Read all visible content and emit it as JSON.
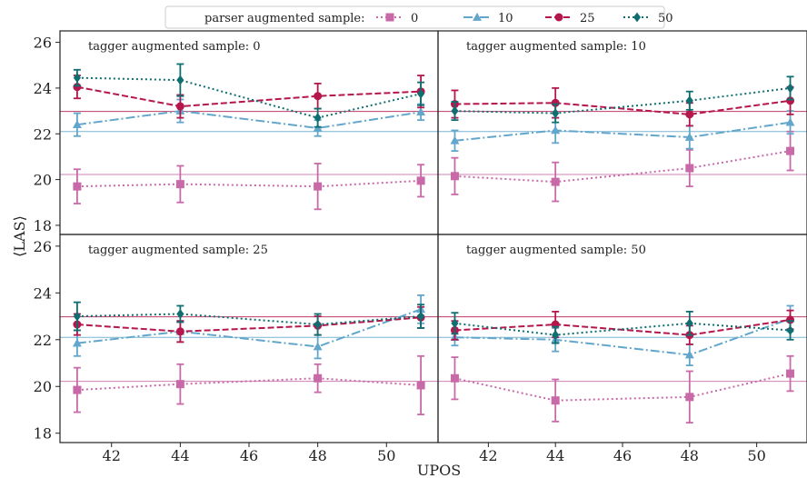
{
  "chart_data": {
    "type": "line",
    "xlabel": "UPOS",
    "ylabel": "⟨LAS⟩",
    "xlim": [
      40.5,
      51.5
    ],
    "ylim": [
      17.6,
      26.5
    ],
    "x_ticks": [
      42,
      44,
      46,
      48,
      50
    ],
    "y_ticks": [
      18,
      20,
      22,
      24,
      26
    ],
    "legend": {
      "title": "parser augmented sample:",
      "placement": "top-center",
      "entries": [
        "0",
        "10",
        "25",
        "50"
      ]
    },
    "series_styles": [
      {
        "name": "0",
        "color": "#c86aa8",
        "marker": "square",
        "dash": "dotted"
      },
      {
        "name": "10",
        "color": "#62a6cc",
        "marker": "triangle",
        "dash": "dashdot"
      },
      {
        "name": "25",
        "color": "#b5174d",
        "marker": "circle",
        "dash": "dashed"
      },
      {
        "name": "50",
        "color": "#0e6e70",
        "marker": "diamond",
        "dash": "dotted"
      }
    ],
    "x": [
      41,
      44,
      48,
      51
    ],
    "panels": [
      {
        "title": "tagger augmented sample: 0",
        "hlines": [
          {
            "y": 22.98,
            "color": "#b5174d"
          },
          {
            "y": 22.1,
            "color": "#62a6cc"
          },
          {
            "y": 20.22,
            "color": "#c86aa8"
          }
        ],
        "series": [
          {
            "name": "0",
            "values": [
              19.7,
              19.8,
              19.7,
              19.95
            ],
            "errors": [
              0.75,
              0.8,
              1.0,
              0.7
            ]
          },
          {
            "name": "10",
            "values": [
              22.4,
              23.0,
              22.25,
              22.95
            ],
            "errors": [
              0.5,
              0.5,
              0.35,
              0.35
            ]
          },
          {
            "name": "25",
            "values": [
              24.05,
              23.2,
              23.65,
              23.85
            ],
            "errors": [
              0.5,
              0.5,
              0.55,
              0.7
            ]
          },
          {
            "name": "50",
            "values": [
              24.45,
              24.35,
              22.7,
              23.75
            ],
            "errors": [
              0.35,
              0.7,
              0.4,
              0.5
            ]
          }
        ]
      },
      {
        "title": "tagger augmented sample: 10",
        "hlines": [
          {
            "y": 22.98,
            "color": "#b5174d"
          },
          {
            "y": 22.1,
            "color": "#62a6cc"
          },
          {
            "y": 20.22,
            "color": "#c86aa8"
          }
        ],
        "series": [
          {
            "name": "0",
            "values": [
              20.15,
              19.9,
              20.5,
              21.25
            ],
            "errors": [
              0.8,
              0.85,
              0.8,
              0.85
            ]
          },
          {
            "name": "10",
            "values": [
              21.7,
              22.15,
              21.85,
              22.5
            ],
            "errors": [
              0.45,
              0.55,
              0.5,
              0.5
            ]
          },
          {
            "name": "25",
            "values": [
              23.3,
              23.35,
              22.85,
              23.45
            ],
            "errors": [
              0.6,
              0.65,
              0.5,
              0.6
            ]
          },
          {
            "name": "50",
            "values": [
              23.0,
              22.9,
              23.45,
              24.0
            ],
            "errors": [
              0.4,
              0.4,
              0.4,
              0.5
            ]
          }
        ]
      },
      {
        "title": "tagger augmented sample: 25",
        "hlines": [
          {
            "y": 22.98,
            "color": "#b5174d"
          },
          {
            "y": 22.1,
            "color": "#62a6cc"
          },
          {
            "y": 20.22,
            "color": "#c86aa8"
          }
        ],
        "series": [
          {
            "name": "0",
            "values": [
              19.85,
              20.1,
              20.35,
              20.05
            ],
            "errors": [
              0.95,
              0.85,
              0.6,
              1.25
            ]
          },
          {
            "name": "10",
            "values": [
              21.85,
              22.35,
              21.7,
              23.3
            ],
            "errors": [
              0.55,
              0.45,
              0.5,
              0.6
            ]
          },
          {
            "name": "25",
            "values": [
              22.65,
              22.35,
              22.6,
              22.95
            ],
            "errors": [
              0.45,
              0.45,
              0.4,
              0.45
            ]
          },
          {
            "name": "50",
            "values": [
              23.0,
              23.1,
              22.65,
              23.0
            ],
            "errors": [
              0.6,
              0.35,
              0.45,
              0.5
            ]
          }
        ]
      },
      {
        "title": "tagger augmented sample: 50",
        "hlines": [
          {
            "y": 22.98,
            "color": "#b5174d"
          },
          {
            "y": 22.1,
            "color": "#62a6cc"
          },
          {
            "y": 20.22,
            "color": "#c86aa8"
          }
        ],
        "series": [
          {
            "name": "0",
            "values": [
              20.35,
              19.4,
              19.55,
              20.55
            ],
            "errors": [
              0.9,
              0.9,
              1.1,
              0.75
            ]
          },
          {
            "name": "10",
            "values": [
              22.1,
              22.0,
              21.35,
              22.9
            ],
            "errors": [
              0.35,
              0.5,
              0.45,
              0.55
            ]
          },
          {
            "name": "25",
            "values": [
              22.4,
              22.65,
              22.2,
              22.85
            ],
            "errors": [
              0.4,
              0.55,
              0.4,
              0.4
            ]
          },
          {
            "name": "50",
            "values": [
              22.7,
              22.2,
              22.7,
              22.4
            ],
            "errors": [
              0.45,
              0.35,
              0.5,
              0.4
            ]
          }
        ]
      }
    ]
  }
}
